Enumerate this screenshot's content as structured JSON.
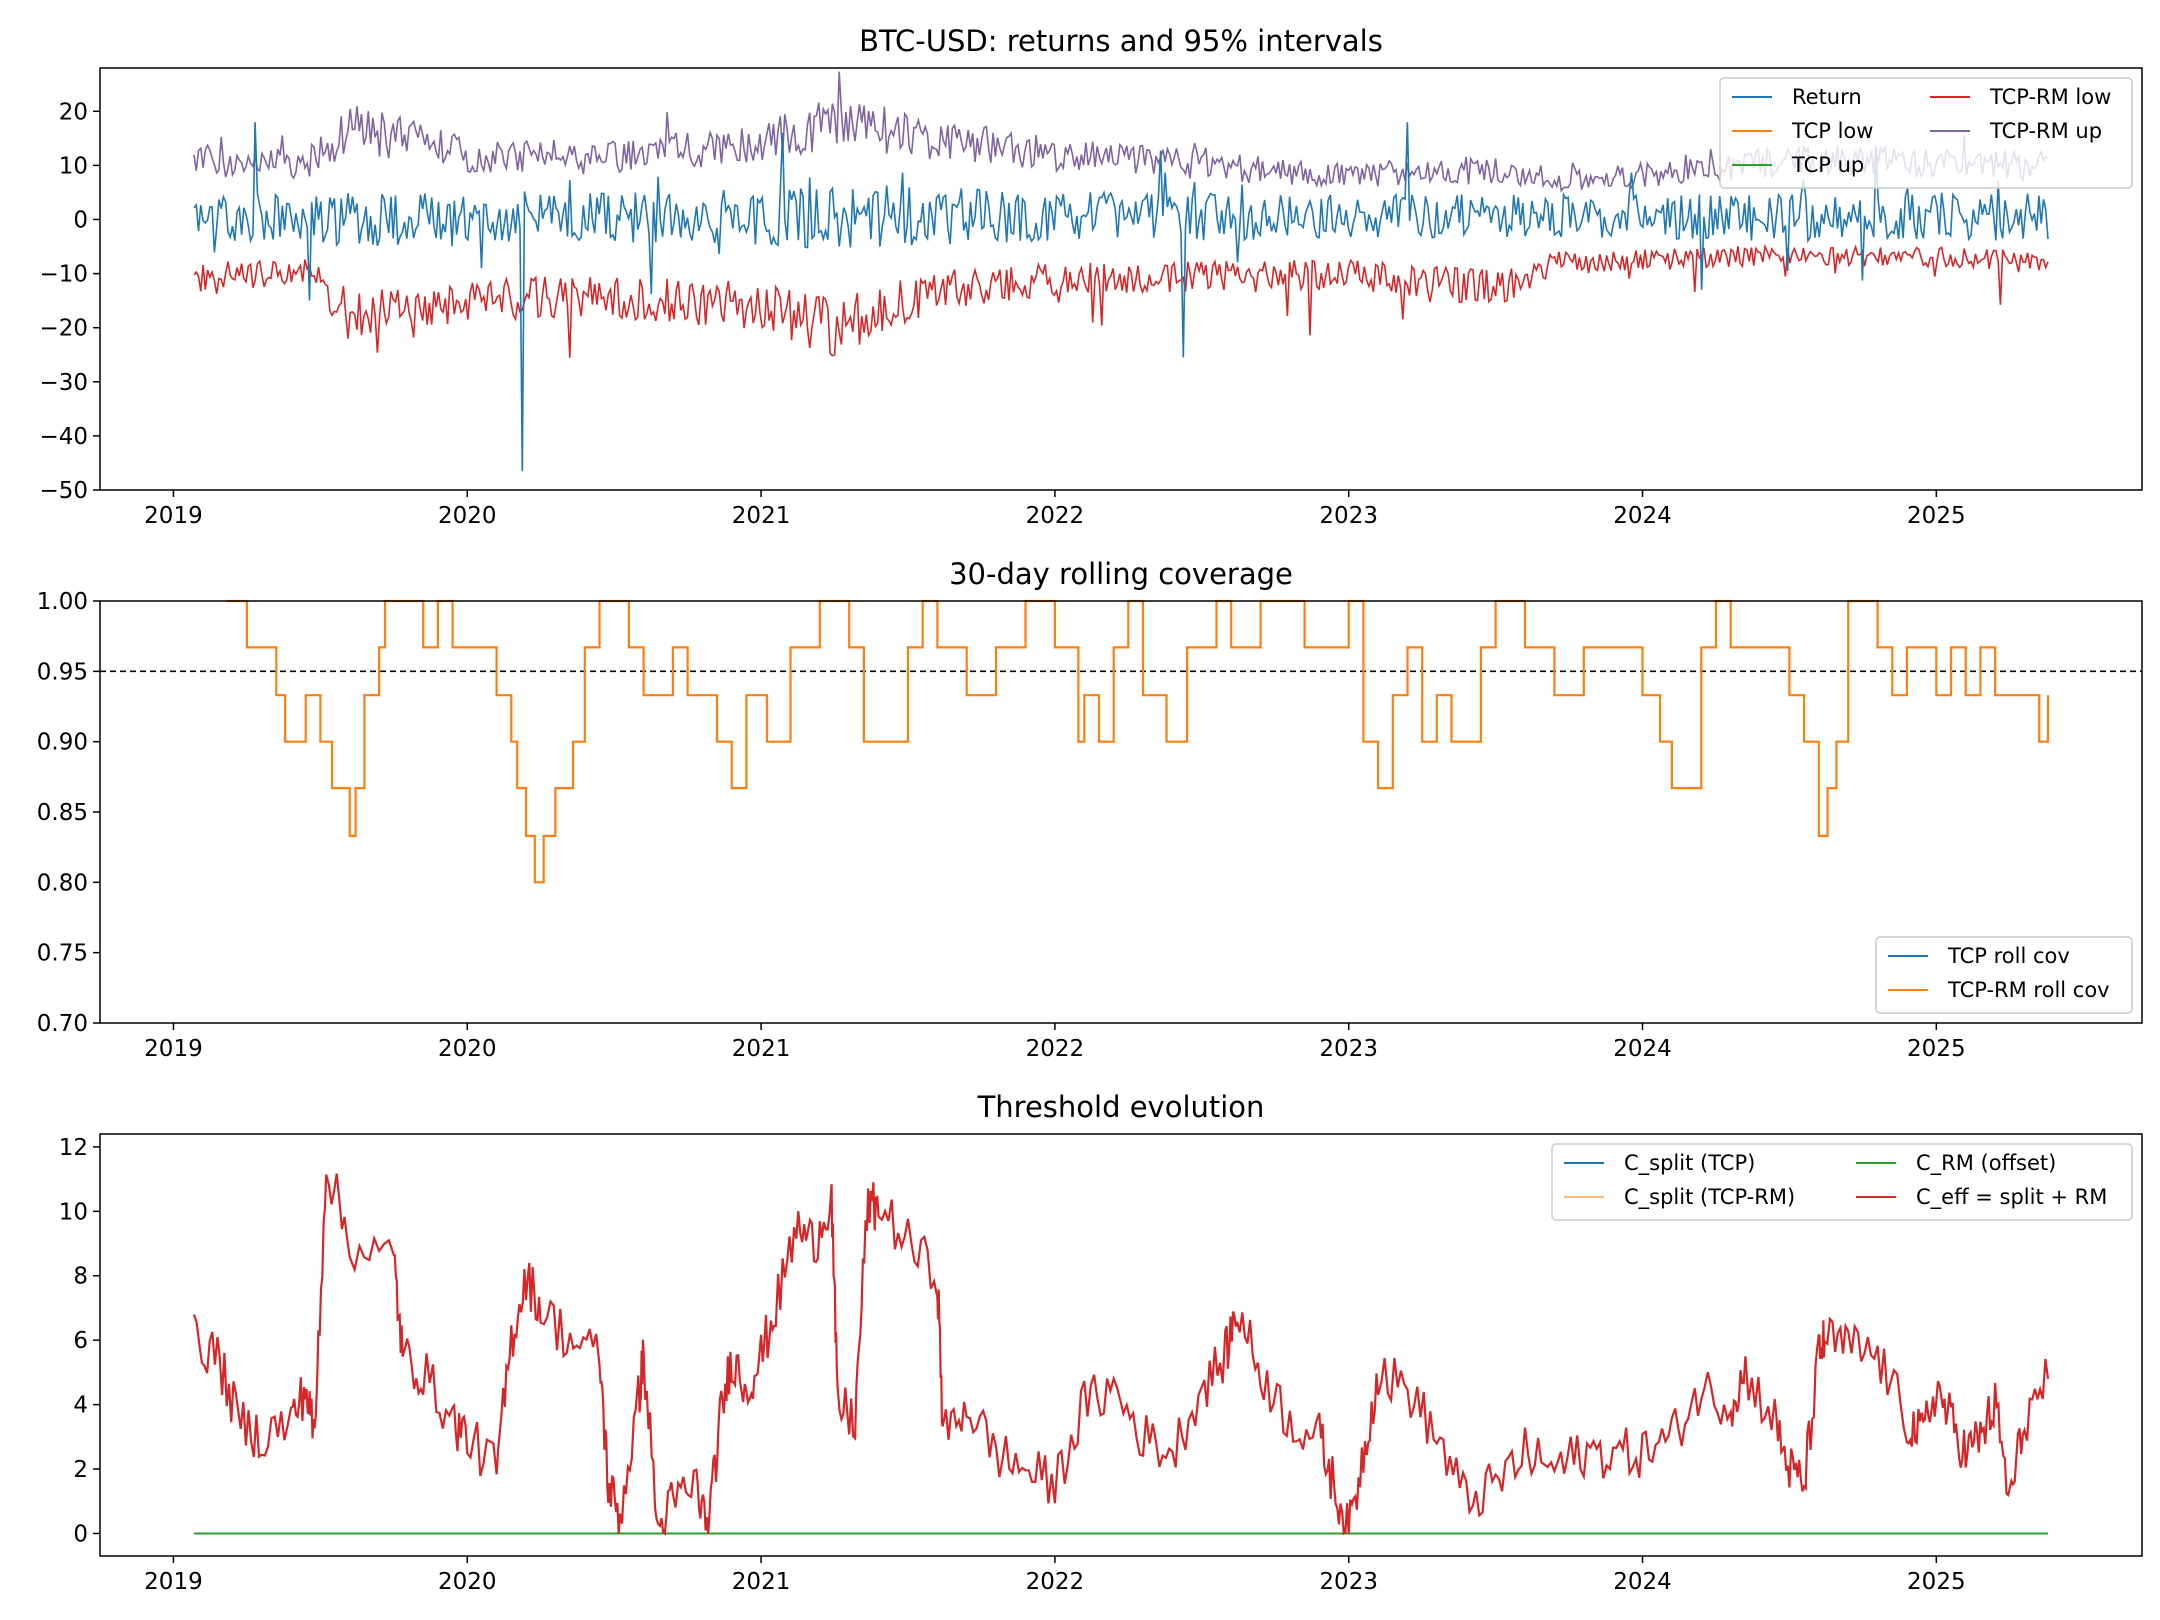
{
  "chart_data": [
    {
      "type": "line",
      "title": "BTC-USD: returns and 95% intervals",
      "xlabel": "",
      "ylabel": "",
      "xlim": [
        2018.75,
        2025.7
      ],
      "ylim": [
        -50,
        28
      ],
      "x_ticks": [
        2019,
        2020,
        2021,
        2022,
        2023,
        2024,
        2025
      ],
      "x_tick_labels": [
        "2019",
        "2020",
        "2021",
        "2022",
        "2023",
        "2024",
        "2025"
      ],
      "y_ticks": [
        20,
        10,
        0,
        -10,
        -20,
        -30,
        -40,
        -50
      ],
      "y_tick_labels": [
        "20",
        "10",
        "0",
        "−10",
        "−20",
        "−30",
        "−40",
        "−50"
      ],
      "legend_position": "top-right",
      "legend_columns": 2,
      "series": [
        {
          "name": "Return",
          "color": "#1f77b4",
          "x_range": [
            2019.07,
            2025.38
          ],
          "level": 0.5,
          "amplitude": 4.0,
          "spikes": [
            [
              2019.46,
              -15
            ],
            [
              2019.28,
              18
            ],
            [
              2020.19,
              -46.5
            ],
            [
              2021.07,
              16
            ],
            [
              2022.44,
              -25.5
            ],
            [
              2023.2,
              18
            ],
            [
              2024.2,
              -13
            ]
          ]
        },
        {
          "name": "TCP low",
          "color": "#ff7f0e",
          "x_range": [
            2019.07,
            2025.38
          ],
          "hidden_under": "TCP-RM low"
        },
        {
          "name": "TCP up",
          "color": "#2ca02c",
          "x_range": [
            2019.07,
            2025.38
          ],
          "hidden_under": "TCP-RM up"
        },
        {
          "name": "TCP-RM low",
          "color": "#d62728",
          "x_range": [
            2019.07,
            2025.38
          ],
          "envelope": [
            [
              2019.07,
              -11
            ],
            [
              2019.45,
              -10
            ],
            [
              2019.6,
              -17
            ],
            [
              2020.0,
              -15
            ],
            [
              2020.4,
              -14
            ],
            [
              2021.0,
              -16
            ],
            [
              2021.25,
              -20
            ],
            [
              2021.6,
              -13
            ],
            [
              2022.0,
              -11
            ],
            [
              2023.0,
              -10
            ],
            [
              2023.5,
              -13
            ],
            [
              2023.7,
              -8
            ],
            [
              2024.5,
              -6.5
            ],
            [
              2025.38,
              -7.5
            ]
          ]
        },
        {
          "name": "TCP-RM up",
          "color": "#8064a2",
          "x_range": [
            2019.07,
            2025.38
          ],
          "envelope": [
            [
              2019.07,
              11
            ],
            [
              2019.45,
              10
            ],
            [
              2019.6,
              17
            ],
            [
              2020.0,
              12
            ],
            [
              2020.4,
              11
            ],
            [
              2021.0,
              14
            ],
            [
              2021.25,
              18
            ],
            [
              2021.6,
              15
            ],
            [
              2022.0,
              12
            ],
            [
              2023.0,
              8
            ],
            [
              2023.5,
              9
            ],
            [
              2023.7,
              7
            ],
            [
              2024.2,
              9
            ],
            [
              2024.5,
              11
            ],
            [
              2025.38,
              10
            ]
          ]
        }
      ]
    },
    {
      "type": "line",
      "title": "30-day rolling coverage",
      "xlabel": "",
      "ylabel": "",
      "xlim": [
        2018.75,
        2025.7
      ],
      "ylim": [
        0.7,
        1.0
      ],
      "x_ticks": [
        2019,
        2020,
        2021,
        2022,
        2023,
        2024,
        2025
      ],
      "x_tick_labels": [
        "2019",
        "2020",
        "2021",
        "2022",
        "2023",
        "2024",
        "2025"
      ],
      "y_ticks": [
        1.0,
        0.95,
        0.9,
        0.85,
        0.8,
        0.75,
        0.7
      ],
      "y_tick_labels": [
        "1.00",
        "0.95",
        "0.90",
        "0.85",
        "0.80",
        "0.75",
        "0.70"
      ],
      "reference_line": {
        "y": 0.95,
        "style": "dashed",
        "color": "#000000"
      },
      "legend_position": "bottom-right",
      "legend_columns": 1,
      "series": [
        {
          "name": "TCP roll cov",
          "color": "#1f77b4",
          "hidden_under": "TCP-RM roll cov"
        },
        {
          "name": "TCP-RM roll cov",
          "color": "#ff7f0e",
          "x": [
            2019.18,
            2019.25,
            2019.28,
            2019.35,
            2019.38,
            2019.45,
            2019.5,
            2019.54,
            2019.6,
            2019.62,
            2019.65,
            2019.7,
            2019.72,
            2019.85,
            2019.9,
            2019.95,
            2020.0,
            2020.1,
            2020.15,
            2020.17,
            2020.2,
            2020.23,
            2020.26,
            2020.3,
            2020.36,
            2020.4,
            2020.45,
            2020.55,
            2020.6,
            2020.7,
            2020.75,
            2020.85,
            2020.9,
            2020.95,
            2021.02,
            2021.1,
            2021.2,
            2021.3,
            2021.35,
            2021.45,
            2021.5,
            2021.55,
            2021.6,
            2021.7,
            2021.8,
            2021.9,
            2022.0,
            2022.08,
            2022.1,
            2022.15,
            2022.2,
            2022.25,
            2022.3,
            2022.38,
            2022.45,
            2022.55,
            2022.6,
            2022.7,
            2022.85,
            2023.0,
            2023.05,
            2023.1,
            2023.15,
            2023.2,
            2023.25,
            2023.3,
            2023.35,
            2023.45,
            2023.5,
            2023.6,
            2023.7,
            2023.8,
            2023.9,
            2024.0,
            2024.06,
            2024.1,
            2024.2,
            2024.25,
            2024.3,
            2024.4,
            2024.5,
            2024.55,
            2024.6,
            2024.63,
            2024.66,
            2024.7,
            2024.8,
            2024.85,
            2024.9,
            2025.0,
            2025.05,
            2025.1,
            2025.15,
            2025.2,
            2025.3,
            2025.35,
            2025.38
          ],
          "values": [
            1.0,
            0.967,
            0.967,
            0.933,
            0.9,
            0.933,
            0.9,
            0.867,
            0.833,
            0.867,
            0.933,
            0.967,
            1.0,
            0.967,
            1.0,
            0.967,
            0.967,
            0.933,
            0.9,
            0.867,
            0.833,
            0.8,
            0.833,
            0.867,
            0.9,
            0.967,
            1.0,
            0.967,
            0.933,
            0.967,
            0.933,
            0.9,
            0.867,
            0.933,
            0.9,
            0.967,
            1.0,
            0.967,
            0.9,
            0.9,
            0.967,
            1.0,
            0.967,
            0.933,
            0.967,
            1.0,
            0.967,
            0.9,
            0.933,
            0.9,
            0.967,
            1.0,
            0.933,
            0.9,
            0.967,
            1.0,
            0.967,
            1.0,
            0.967,
            1.0,
            0.9,
            0.867,
            0.933,
            0.967,
            0.9,
            0.933,
            0.9,
            0.967,
            1.0,
            0.967,
            0.933,
            0.967,
            0.967,
            0.933,
            0.9,
            0.867,
            0.967,
            1.0,
            0.967,
            0.967,
            0.933,
            0.9,
            0.833,
            0.867,
            0.9,
            1.0,
            0.967,
            0.933,
            0.967,
            0.933,
            0.967,
            0.933,
            0.967,
            0.933,
            0.933,
            0.9,
            0.933
          ]
        }
      ]
    },
    {
      "type": "line",
      "title": "Threshold evolution",
      "xlabel": "",
      "ylabel": "",
      "xlim": [
        2018.75,
        2025.7
      ],
      "ylim": [
        -0.7,
        12.4
      ],
      "x_ticks": [
        2019,
        2020,
        2021,
        2022,
        2023,
        2024,
        2025
      ],
      "x_tick_labels": [
        "2019",
        "2020",
        "2021",
        "2022",
        "2023",
        "2024",
        "2025"
      ],
      "y_ticks": [
        12,
        10,
        8,
        6,
        4,
        2,
        0
      ],
      "y_tick_labels": [
        "12",
        "10",
        "8",
        "6",
        "4",
        "2",
        "0"
      ],
      "legend_position": "top-right",
      "legend_columns": 2,
      "series": [
        {
          "name": "C_split (TCP)",
          "color": "#1f77b4",
          "hidden_under": "C_eff = split + RM"
        },
        {
          "name": "C_split (TCP-RM)",
          "color": "#ffbb78",
          "hidden_under": "C_eff = split + RM"
        },
        {
          "name": "C_RM (offset)",
          "color": "#2ca02c",
          "x": [
            2019.07,
            2025.38
          ],
          "values": [
            0.0,
            0.0
          ]
        },
        {
          "name": "C_eff = split + RM",
          "color": "#d62728",
          "x": [
            2019.07,
            2019.15,
            2019.22,
            2019.3,
            2019.4,
            2019.45,
            2019.48,
            2019.52,
            2019.6,
            2019.75,
            2019.78,
            2019.85,
            2019.95,
            2020.0,
            2020.1,
            2020.15,
            2020.2,
            2020.25,
            2020.35,
            2020.45,
            2020.48,
            2020.52,
            2020.58,
            2020.6,
            2020.65,
            2020.7,
            2020.78,
            2020.82,
            2020.86,
            2020.9,
            2020.95,
            2021.0,
            2021.05,
            2021.12,
            2021.18,
            2021.24,
            2021.26,
            2021.32,
            2021.36,
            2021.4,
            2021.5,
            2021.6,
            2021.62,
            2021.7,
            2021.8,
            2021.9,
            2022.0,
            2022.1,
            2022.2,
            2022.3,
            2022.4,
            2022.5,
            2022.58,
            2022.62,
            2022.7,
            2022.8,
            2022.9,
            2022.95,
            2023.0,
            2023.05,
            2023.1,
            2023.2,
            2023.3,
            2023.4,
            2023.5,
            2023.6,
            2023.7,
            2023.8,
            2023.9,
            2024.0,
            2024.1,
            2024.2,
            2024.3,
            2024.35,
            2024.45,
            2024.5,
            2024.55,
            2024.6,
            2024.62,
            2024.7,
            2024.8,
            2024.9,
            2024.95,
            2025.0,
            2025.05,
            2025.1,
            2025.15,
            2025.2,
            2025.25,
            2025.3,
            2025.38
          ],
          "values": [
            6.0,
            5.5,
            3.5,
            3.0,
            3.5,
            4.5,
            3.0,
            11.5,
            9.0,
            8.5,
            5.5,
            5.0,
            3.5,
            3.0,
            2.0,
            6.0,
            8.0,
            7.0,
            6.0,
            5.5,
            1.5,
            0.5,
            4.0,
            5.5,
            0.0,
            1.0,
            1.5,
            0.0,
            3.5,
            5.5,
            4.5,
            5.5,
            7.0,
            9.5,
            9.0,
            10.5,
            4.0,
            3.5,
            10.0,
            10.2,
            9.0,
            8.0,
            3.0,
            4.0,
            2.5,
            2.0,
            1.5,
            4.0,
            4.5,
            3.0,
            2.5,
            4.5,
            5.5,
            7.0,
            5.0,
            3.5,
            3.0,
            1.5,
            0.0,
            2.5,
            5.0,
            4.5,
            3.0,
            1.0,
            1.5,
            2.5,
            2.0,
            2.5,
            2.5,
            2.5,
            3.0,
            4.5,
            4.0,
            5.0,
            3.5,
            2.0,
            1.5,
            5.5,
            6.0,
            5.8,
            5.5,
            3.5,
            3.0,
            4.5,
            3.5,
            2.5,
            3.0,
            4.0,
            1.0,
            3.5,
            4.8
          ]
        }
      ]
    }
  ]
}
